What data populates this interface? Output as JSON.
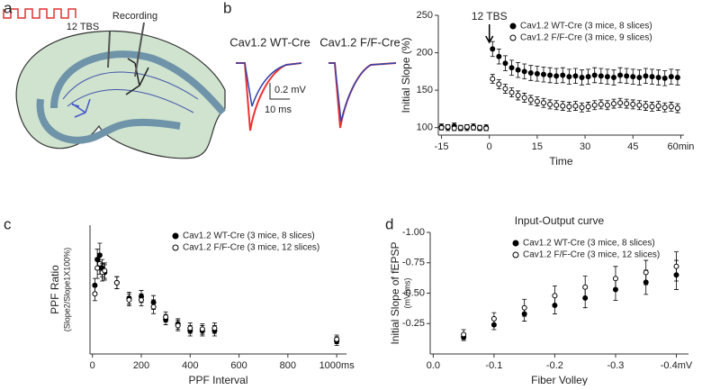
{
  "panel_labels": [
    "a",
    "b",
    "c",
    "d"
  ],
  "diagram": {
    "stim": "12 TBS",
    "recording": "Recording"
  },
  "traces": {
    "labels": [
      "Cav1.2 WT-Cre",
      "Cav1.2 F/F-Cre"
    ],
    "scale_y": "0.2 mV",
    "scale_x": "10 ms"
  },
  "chart_data": [
    {
      "type": "scatter",
      "ylabel": "Initial Slope (%)",
      "xlabel": "Time",
      "annotation": {
        "text": "12 TBS",
        "x": 0
      },
      "legend": "upper right",
      "xlim": [
        -16,
        61
      ],
      "xticks": [
        -15,
        0,
        15,
        30,
        45,
        {
          "value": 60,
          "label": "60min"
        }
      ],
      "ylim": [
        90,
        250
      ],
      "yticks": [
        100,
        150,
        200,
        250
      ],
      "x": [
        -15,
        -13,
        -11,
        -9,
        -7,
        -5,
        -3,
        -1,
        1,
        3,
        5,
        7,
        9,
        11,
        13,
        15,
        17,
        19,
        21,
        23,
        25,
        27,
        29,
        31,
        33,
        35,
        37,
        39,
        41,
        43,
        45,
        47,
        49,
        51,
        53,
        55,
        57,
        59
      ],
      "series": [
        {
          "name": "Cav1.2 WT-Cre (3 mice, 8 slices)",
          "color": "#000000",
          "marker_fill": "#000000",
          "values": [
            101,
            100,
            102,
            99,
            100,
            101,
            99,
            100,
            205,
            195,
            186,
            180,
            177,
            175,
            173,
            172,
            171,
            170,
            169,
            170,
            168,
            169,
            167,
            168,
            170,
            169,
            168,
            167,
            170,
            169,
            168,
            167,
            169,
            168,
            167,
            166,
            168,
            167
          ],
          "errors": [
            4,
            4,
            4,
            3,
            4,
            4,
            3,
            4,
            10,
            10,
            10,
            10,
            10,
            10,
            10,
            10,
            10,
            10,
            10,
            10,
            10,
            10,
            10,
            10,
            10,
            10,
            10,
            10,
            10,
            10,
            10,
            10,
            10,
            10,
            10,
            10,
            10,
            10
          ]
        },
        {
          "name": "Cav1.2 F/F-Cre (3 mice, 9 slices)",
          "color": "#000000",
          "marker_fill": "#ffffff",
          "values": [
            100,
            101,
            99,
            100,
            101,
            100,
            100,
            99,
            165,
            158,
            152,
            147,
            143,
            140,
            137,
            135,
            133,
            131,
            130,
            129,
            128,
            129,
            127,
            128,
            130,
            131,
            130,
            132,
            133,
            132,
            131,
            130,
            129,
            128,
            129,
            127,
            128,
            126
          ],
          "errors": [
            3,
            3,
            3,
            3,
            3,
            3,
            3,
            3,
            6,
            6,
            6,
            6,
            6,
            6,
            6,
            6,
            6,
            6,
            6,
            6,
            6,
            6,
            6,
            6,
            6,
            6,
            6,
            6,
            6,
            6,
            6,
            6,
            6,
            6,
            6,
            6,
            6,
            6
          ]
        }
      ]
    },
    {
      "type": "scatter",
      "ylabel": [
        "PPF Ratio",
        "(Slope2/Slope1X100%)"
      ],
      "xlabel": "PPF Interval",
      "legend": "upper right",
      "xlim": [
        -10,
        1040
      ],
      "xticks": [
        0,
        200,
        400,
        600,
        800,
        {
          "value": 1000,
          "label": "1000ms"
        }
      ],
      "ylim": [
        85,
        235
      ],
      "x": [
        10,
        20,
        30,
        40,
        50,
        100,
        150,
        200,
        250,
        300,
        350,
        400,
        450,
        500,
        1000
      ],
      "series": [
        {
          "name": "Cav1.2 WT-Cre (3 mice, 8 slices)",
          "color": "#000000",
          "marker_fill": "#000000",
          "values": [
            165,
            195,
            200,
            185,
            180,
            168,
            150,
            152,
            145,
            125,
            120,
            112,
            112,
            112,
            100
          ],
          "errors": [
            8,
            12,
            14,
            10,
            9,
            7,
            7,
            7,
            8,
            6,
            6,
            6,
            6,
            6,
            5
          ]
        },
        {
          "name": "Cav1.2 F/F-Cre (3 mice, 12 slices)",
          "color": "#000000",
          "marker_fill": "#ffffff",
          "values": [
            155,
            185,
            190,
            180,
            182,
            168,
            148,
            148,
            140,
            128,
            118,
            115,
            114,
            115,
            102
          ],
          "errors": [
            8,
            12,
            12,
            10,
            9,
            7,
            7,
            7,
            8,
            6,
            6,
            6,
            6,
            6,
            5
          ]
        }
      ]
    },
    {
      "type": "scatter",
      "title": "Input-Output curve",
      "ylabel": [
        "Initial Slope of fEPSP",
        "(mV/ms)"
      ],
      "xlabel": "Fiber Volley",
      "legend": "upper left",
      "xlim": [
        0.005,
        -0.42
      ],
      "xticks": [
        {
          "value": 0,
          "label": "0.0"
        },
        -0.1,
        -0.2,
        -0.3,
        {
          "value": -0.4,
          "label": "-0.4mV"
        }
      ],
      "ylim": [
        0,
        -1
      ],
      "yticks": [
        {
          "value": -0.25,
          "label": "-0.25"
        },
        {
          "value": -0.5,
          "label": "-0.50"
        },
        {
          "value": -0.75,
          "label": "-0.75"
        },
        {
          "value": -1,
          "label": "-1.00"
        }
      ],
      "x": [
        -0.05,
        -0.1,
        -0.15,
        -0.2,
        -0.25,
        -0.3,
        -0.35,
        -0.4
      ],
      "series": [
        {
          "name": "Cav1.2 WT-Cre (3 mice, 8 slices)",
          "color": "#000000",
          "marker_fill": "#000000",
          "values": [
            -0.14,
            -0.24,
            -0.33,
            -0.4,
            -0.46,
            -0.53,
            -0.59,
            -0.65
          ],
          "errors": [
            0.03,
            0.04,
            0.06,
            0.07,
            0.08,
            0.09,
            0.1,
            0.12
          ]
        },
        {
          "name": "Cav1.2 F/F-Cre (3 mice, 12 slices)",
          "color": "#000000",
          "marker_fill": "#ffffff",
          "values": [
            -0.16,
            -0.29,
            -0.38,
            -0.48,
            -0.55,
            -0.62,
            -0.67,
            -0.72
          ],
          "errors": [
            0.04,
            0.05,
            0.07,
            0.08,
            0.09,
            0.1,
            0.1,
            0.12
          ]
        }
      ]
    }
  ]
}
